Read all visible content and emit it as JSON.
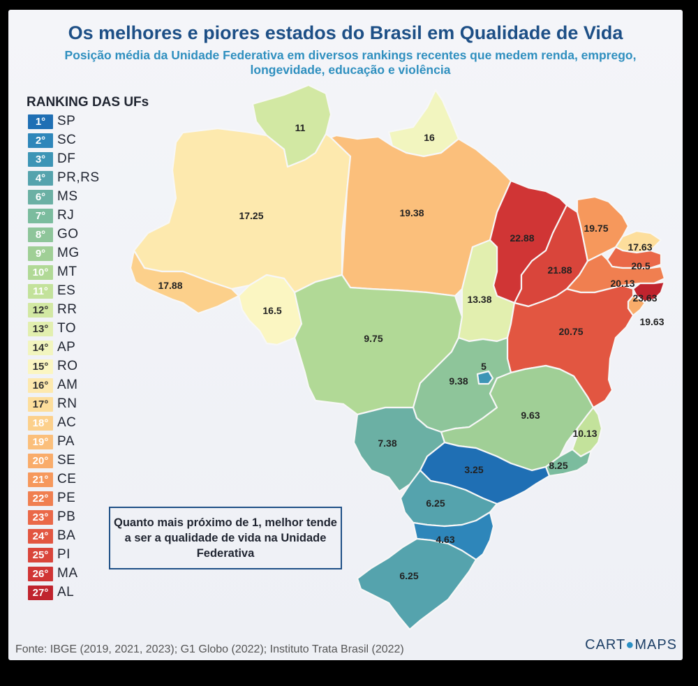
{
  "title": "Os melhores e piores estados do Brasil em Qualidade de Vida",
  "subtitle": "Posição média da Unidade Federativa em diversos rankings recentes que medem renda, emprego, longevidade, educação e violência",
  "legend": {
    "title": "RANKING DAS UFs",
    "items": [
      {
        "rank": "1°",
        "uf": "SP",
        "color": "#1f6fb4"
      },
      {
        "rank": "2°",
        "uf": "SC",
        "color": "#2e86ba"
      },
      {
        "rank": "3°",
        "uf": "DF",
        "color": "#3d95b6"
      },
      {
        "rank": "4°",
        "uf": "PR,RS",
        "color": "#55a3ad"
      },
      {
        "rank": "6°",
        "uf": "MS",
        "color": "#6bb0a4"
      },
      {
        "rank": "7°",
        "uf": "RJ",
        "color": "#7bbc9e"
      },
      {
        "rank": "8°",
        "uf": "GO",
        "color": "#8ec59a"
      },
      {
        "rank": "9°",
        "uf": "MG",
        "color": "#a0cf96"
      },
      {
        "rank": "10°",
        "uf": "MT",
        "color": "#b1d996"
      },
      {
        "rank": "11°",
        "uf": "ES",
        "color": "#c3e29b"
      },
      {
        "rank": "12°",
        "uf": "RR",
        "color": "#d2e8a3"
      },
      {
        "rank": "13°",
        "uf": "TO",
        "color": "#e2efaf"
      },
      {
        "rank": "14°",
        "uf": "AP",
        "color": "#f2f5bf"
      },
      {
        "rank": "15°",
        "uf": "RO",
        "color": "#fbf6c2"
      },
      {
        "rank": "16°",
        "uf": "AM",
        "color": "#fde9ae"
      },
      {
        "rank": "17°",
        "uf": "RN",
        "color": "#fdde9c"
      },
      {
        "rank": "18°",
        "uf": "AC",
        "color": "#fcd08b"
      },
      {
        "rank": "19°",
        "uf": "PA",
        "color": "#fbbf7b"
      },
      {
        "rank": "20°",
        "uf": "SE",
        "color": "#f9ac6a"
      },
      {
        "rank": "21°",
        "uf": "CE",
        "color": "#f6985c"
      },
      {
        "rank": "22°",
        "uf": "PE",
        "color": "#f07f50"
      },
      {
        "rank": "23°",
        "uf": "PB",
        "color": "#ea6848"
      },
      {
        "rank": "24°",
        "uf": "BA",
        "color": "#e25641"
      },
      {
        "rank": "25°",
        "uf": "PI",
        "color": "#d9453b"
      },
      {
        "rank": "26°",
        "uf": "MA",
        "color": "#d03535"
      },
      {
        "rank": "27°",
        "uf": "AL",
        "color": "#c0242e"
      }
    ]
  },
  "states": {
    "RR": {
      "value": "11",
      "color": "#d2e8a3"
    },
    "AP": {
      "value": "16",
      "color": "#f2f5bf"
    },
    "AM": {
      "value": "17.25",
      "color": "#fde9ae"
    },
    "PA": {
      "value": "19.38",
      "color": "#fbbf7b"
    },
    "AC": {
      "value": "17.88",
      "color": "#fcd08b"
    },
    "RO": {
      "value": "16.5",
      "color": "#fbf6c2"
    },
    "MA": {
      "value": "22.88",
      "color": "#d03535"
    },
    "PI": {
      "value": "21.88",
      "color": "#d9453b"
    },
    "CE": {
      "value": "19.75",
      "color": "#f6985c"
    },
    "RN": {
      "value": "17.63",
      "color": "#fdde9c"
    },
    "PB": {
      "value": "20.5",
      "color": "#ea6848"
    },
    "PE": {
      "value": "20.13",
      "color": "#f07f50"
    },
    "AL": {
      "value": "23.63",
      "color": "#c0242e"
    },
    "SE": {
      "value": "19.63",
      "color": "#f9ac6a"
    },
    "TO": {
      "value": "13.38",
      "color": "#e2efaf"
    },
    "BA": {
      "value": "20.75",
      "color": "#e25641"
    },
    "MT": {
      "value": "9.75",
      "color": "#b1d996"
    },
    "GO": {
      "value": "9.38",
      "color": "#8ec59a"
    },
    "DF": {
      "value": "5",
      "color": "#3d95b6"
    },
    "MG": {
      "value": "9.63",
      "color": "#a0cf96"
    },
    "ES": {
      "value": "10.13",
      "color": "#c3e29b"
    },
    "MS": {
      "value": "7.38",
      "color": "#6bb0a4"
    },
    "SP": {
      "value": "3.25",
      "color": "#1f6fb4"
    },
    "RJ": {
      "value": "8.25",
      "color": "#7bbc9e"
    },
    "PR": {
      "value": "6.25",
      "color": "#55a3ad"
    },
    "SC": {
      "value": "4.63",
      "color": "#2e86ba"
    },
    "RS": {
      "value": "6.25",
      "color": "#55a3ad"
    }
  },
  "note": "Quanto mais próximo de 1, melhor tende a ser a qualidade de vida na Unidade Federativa",
  "source": "Fonte: IBGE (2019, 2021, 2023); G1 Globo (2022); Instituto Trata Brasil (2022)",
  "logo": {
    "left": "CART",
    "globe": "●",
    "right": "MAPS"
  }
}
